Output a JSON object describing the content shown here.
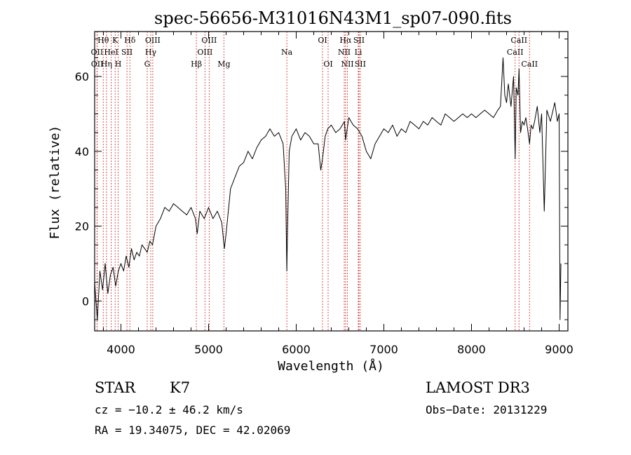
{
  "chart_data": {
    "type": "line",
    "title": "spec-56656-M31016N43M1_sp07-090.fits",
    "xlabel": "Wavelength (Å)",
    "ylabel": "Flux (relative)",
    "xlim": [
      3700,
      9100
    ],
    "ylim": [
      -8,
      72
    ],
    "xticks": [
      4000,
      5000,
      6000,
      7000,
      8000,
      9000
    ],
    "xtick_labels": [
      "4000",
      "5000",
      "6000",
      "7000",
      "8000",
      "9000"
    ],
    "yticks": [
      0,
      20,
      40,
      60
    ],
    "ytick_labels": [
      "0",
      "20",
      "40",
      "60"
    ],
    "grid": false,
    "series": [
      {
        "name": "spectrum",
        "color": "#000000",
        "x": [
          3700,
          3730,
          3760,
          3790,
          3820,
          3850,
          3880,
          3910,
          3940,
          3970,
          4000,
          4030,
          4060,
          4090,
          4120,
          4150,
          4180,
          4210,
          4240,
          4270,
          4300,
          4330,
          4360,
          4400,
          4450,
          4500,
          4550,
          4600,
          4650,
          4700,
          4750,
          4800,
          4850,
          4870,
          4900,
          4950,
          5000,
          5050,
          5100,
          5150,
          5180,
          5200,
          5250,
          5300,
          5350,
          5400,
          5450,
          5500,
          5550,
          5600,
          5650,
          5700,
          5750,
          5800,
          5850,
          5880,
          5893,
          5900,
          5920,
          5950,
          6000,
          6050,
          6100,
          6150,
          6200,
          6250,
          6280,
          6300,
          6330,
          6360,
          6400,
          6450,
          6500,
          6550,
          6563,
          6600,
          6650,
          6700,
          6750,
          6800,
          6850,
          6900,
          6950,
          7000,
          7050,
          7100,
          7150,
          7200,
          7250,
          7300,
          7350,
          7400,
          7450,
          7500,
          7550,
          7600,
          7650,
          7700,
          7750,
          7800,
          7850,
          7900,
          7950,
          8000,
          8050,
          8100,
          8150,
          8200,
          8250,
          8300,
          8330,
          8360,
          8380,
          8400,
          8420,
          8450,
          8480,
          8498,
          8510,
          8530,
          8542,
          8560,
          8580,
          8600,
          8620,
          8640,
          8662,
          8680,
          8700,
          8720,
          8750,
          8780,
          8800,
          8830,
          8860,
          8900,
          8950,
          8980,
          9000,
          9010,
          9020
        ],
        "y": [
          5,
          -5,
          8,
          3,
          10,
          2,
          7,
          9,
          4,
          8,
          10,
          8,
          12,
          9,
          14,
          11,
          13,
          12,
          15,
          14,
          13,
          16,
          15,
          20,
          22,
          25,
          24,
          26,
          25,
          24,
          23,
          25,
          22,
          18,
          24,
          22,
          25,
          22,
          24,
          21,
          14,
          18,
          30,
          33,
          36,
          37,
          40,
          38,
          41,
          43,
          44,
          46,
          44,
          45,
          42,
          30,
          8,
          18,
          40,
          44,
          46,
          43,
          45,
          44,
          42,
          42,
          35,
          38,
          44,
          46,
          47,
          45,
          46,
          48,
          43,
          49,
          47,
          46,
          44,
          40,
          38,
          42,
          44,
          46,
          45,
          47,
          44,
          46,
          45,
          48,
          47,
          46,
          48,
          47,
          49,
          48,
          47,
          50,
          49,
          48,
          49,
          50,
          49,
          50,
          49,
          50,
          51,
          50,
          49,
          51,
          52,
          65,
          55,
          53,
          58,
          52,
          60,
          38,
          57,
          55,
          62,
          45,
          48,
          47,
          49,
          46,
          42,
          47,
          46,
          48,
          52,
          45,
          50,
          24,
          51,
          48,
          53,
          48,
          50,
          -5,
          10
        ]
      }
    ],
    "line_labels": [
      {
        "label": "Hθ",
        "wavelength": 3798,
        "row": 1
      },
      {
        "label": "OII",
        "wavelength": 3727,
        "row": 2
      },
      {
        "label": "OII",
        "wavelength": 3729,
        "row": 3
      },
      {
        "label": "Hη",
        "wavelength": 3835,
        "row": 3
      },
      {
        "label": "HeI",
        "wavelength": 3889,
        "row": 2
      },
      {
        "label": "K",
        "wavelength": 3934,
        "row": 1
      },
      {
        "label": "SII",
        "wavelength": 4069,
        "row": 2
      },
      {
        "label": "H",
        "wavelength": 3968,
        "row": 3
      },
      {
        "label": "Hδ",
        "wavelength": 4102,
        "row": 1
      },
      {
        "label": "OIII",
        "wavelength": 4363,
        "row": 1
      },
      {
        "label": "Hγ",
        "wavelength": 4340,
        "row": 2
      },
      {
        "label": "G",
        "wavelength": 4300,
        "row": 3
      },
      {
        "label": "Hβ",
        "wavelength": 4861,
        "row": 3
      },
      {
        "label": "OIII",
        "wavelength": 5007,
        "row": 1
      },
      {
        "label": "OIII",
        "wavelength": 4959,
        "row": 2
      },
      {
        "label": "Mg",
        "wavelength": 5175,
        "row": 3
      },
      {
        "label": "Na",
        "wavelength": 5893,
        "row": 2
      },
      {
        "label": "OI",
        "wavelength": 6300,
        "row": 1
      },
      {
        "label": "OI",
        "wavelength": 6364,
        "row": 3
      },
      {
        "label": "Hα",
        "wavelength": 6563,
        "row": 1
      },
      {
        "label": "NII",
        "wavelength": 6548,
        "row": 2
      },
      {
        "label": "NII",
        "wavelength": 6584,
        "row": 3
      },
      {
        "label": "SII",
        "wavelength": 6716,
        "row": 1
      },
      {
        "label": "Li",
        "wavelength": 6708,
        "row": 2
      },
      {
        "label": "SII",
        "wavelength": 6731,
        "row": 3
      },
      {
        "label": "CaII",
        "wavelength": 8542,
        "row": 1
      },
      {
        "label": "CaII",
        "wavelength": 8498,
        "row": 2
      },
      {
        "label": "CaII",
        "wavelength": 8662,
        "row": 3
      }
    ],
    "marker_lines": [
      3727,
      3729,
      3798,
      3835,
      3889,
      3934,
      3968,
      4069,
      4102,
      4300,
      4340,
      4363,
      4861,
      4959,
      5007,
      5175,
      5893,
      6300,
      6364,
      6548,
      6563,
      6584,
      6708,
      6716,
      6731,
      8498,
      8542,
      8662
    ]
  },
  "info": {
    "object_class": "STAR",
    "subclass": "K7",
    "survey": "LAMOST DR3",
    "redshift": "cz = −10.2 ± 46.2 km/s",
    "obs_date": "Obs−Date: 20131229",
    "coords": "RA =  19.34075, DEC =  42.02069"
  }
}
